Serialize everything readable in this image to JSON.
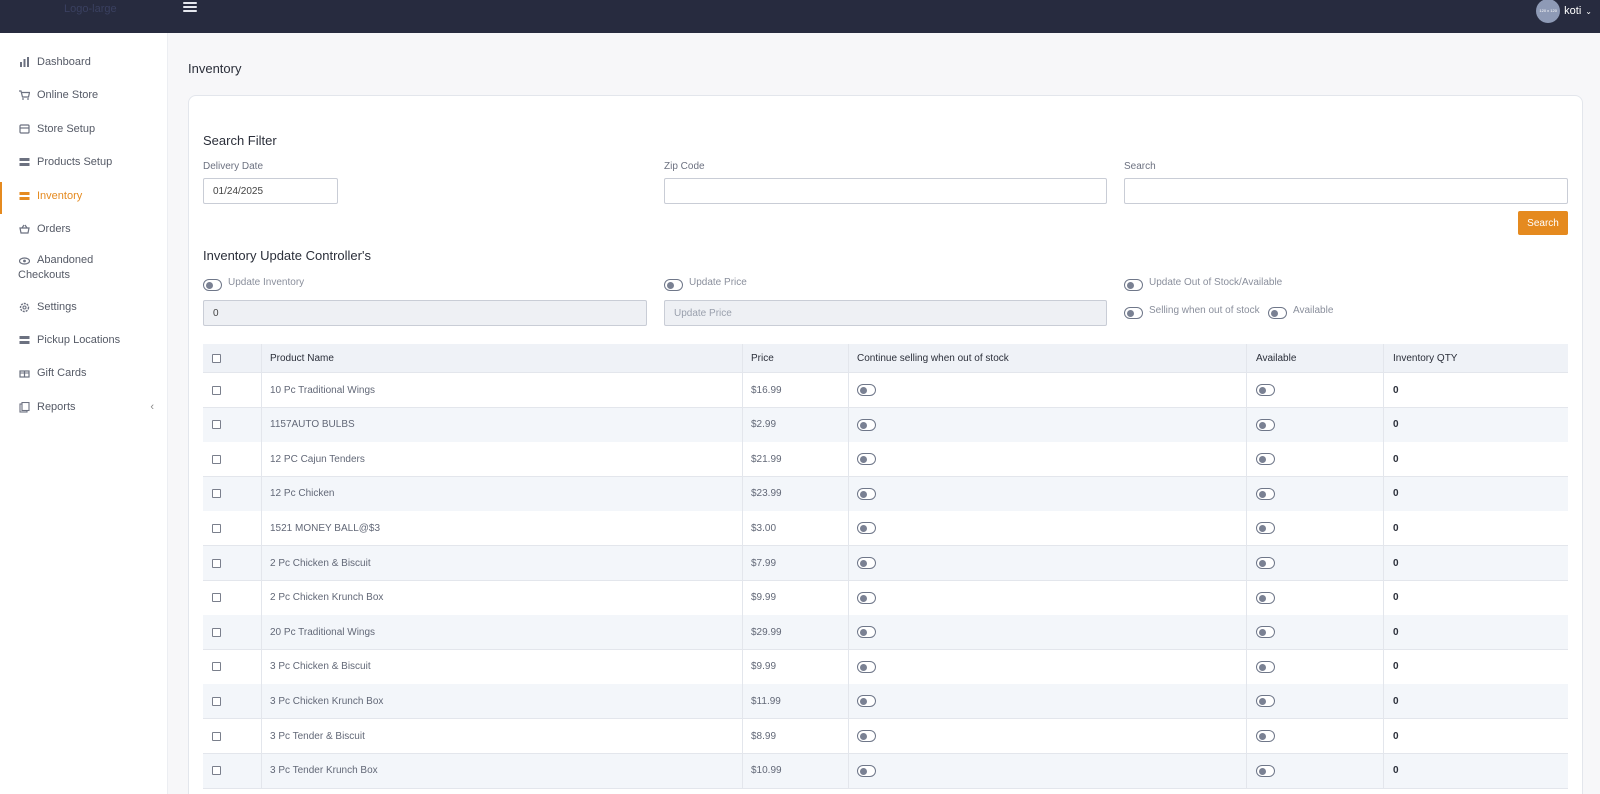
{
  "header": {
    "logo_text": "Logo-large",
    "avatar_text": "120 x 120",
    "user_name": "koti",
    "user_chevron": "⌄"
  },
  "sidebar": {
    "items": [
      {
        "label": "Dashboard",
        "icon": "bar-chart-icon"
      },
      {
        "label": "Online Store",
        "icon": "cart-icon"
      },
      {
        "label": "Store Setup",
        "icon": "store-icon"
      },
      {
        "label": "Products Setup",
        "icon": "products-icon"
      },
      {
        "label": "Inventory",
        "icon": "inventory-icon",
        "active": true
      },
      {
        "label": "Orders",
        "icon": "basket-icon"
      },
      {
        "label": "Abandoned Checkouts",
        "icon": "eye-icon"
      },
      {
        "label": "Settings",
        "icon": "gear-icon"
      },
      {
        "label": "Pickup Locations",
        "icon": "location-icon"
      },
      {
        "label": "Gift Cards",
        "icon": "gift-icon"
      },
      {
        "label": "Reports",
        "icon": "reports-icon"
      }
    ],
    "collapse_glyph": "‹",
    "active_color": "#e58a1f"
  },
  "page": {
    "title": "Inventory"
  },
  "filter": {
    "title": "Search Filter",
    "delivery_date_label": "Delivery Date",
    "delivery_date_value": "01/24/2025",
    "zip_label": "Zip Code",
    "zip_value": "",
    "search_label": "Search",
    "search_value": "",
    "search_button": "Search"
  },
  "controllers": {
    "title": "Inventory Update Controller's",
    "update_inventory_label": "Update Inventory",
    "update_inventory_value": "0",
    "update_price_label": "Update Price",
    "update_price_placeholder": "Update Price",
    "update_stock_label": "Update Out of Stock/Available",
    "selling_label": "Selling when out of stock",
    "available_label": "Available"
  },
  "table": {
    "headers": {
      "name": "Product Name",
      "price": "Price",
      "continue": "Continue selling when out of stock",
      "available": "Available",
      "qty": "Inventory QTY"
    },
    "rows": [
      {
        "name": "10 Pc Traditional Wings",
        "price": "$16.99",
        "qty": "0"
      },
      {
        "name": "1157AUTO BULBS",
        "price": "$2.99",
        "qty": "0"
      },
      {
        "name": "12 PC Cajun Tenders",
        "price": "$21.99",
        "qty": "0"
      },
      {
        "name": "12 Pc Chicken",
        "price": "$23.99",
        "qty": "0"
      },
      {
        "name": "1521 MONEY BALL@$3",
        "price": "$3.00",
        "qty": "0"
      },
      {
        "name": "2 Pc Chicken & Biscuit",
        "price": "$7.99",
        "qty": "0"
      },
      {
        "name": "2 Pc Chicken Krunch Box",
        "price": "$9.99",
        "qty": "0"
      },
      {
        "name": "20 Pc Traditional Wings",
        "price": "$29.99",
        "qty": "0"
      },
      {
        "name": "3 Pc Chicken & Biscuit",
        "price": "$9.99",
        "qty": "0"
      },
      {
        "name": "3 Pc Chicken Krunch Box",
        "price": "$11.99",
        "qty": "0"
      },
      {
        "name": "3 Pc Tender & Biscuit",
        "price": "$8.99",
        "qty": "0"
      },
      {
        "name": "3 Pc Tender Krunch Box",
        "price": "$10.99",
        "qty": "0"
      }
    ]
  }
}
